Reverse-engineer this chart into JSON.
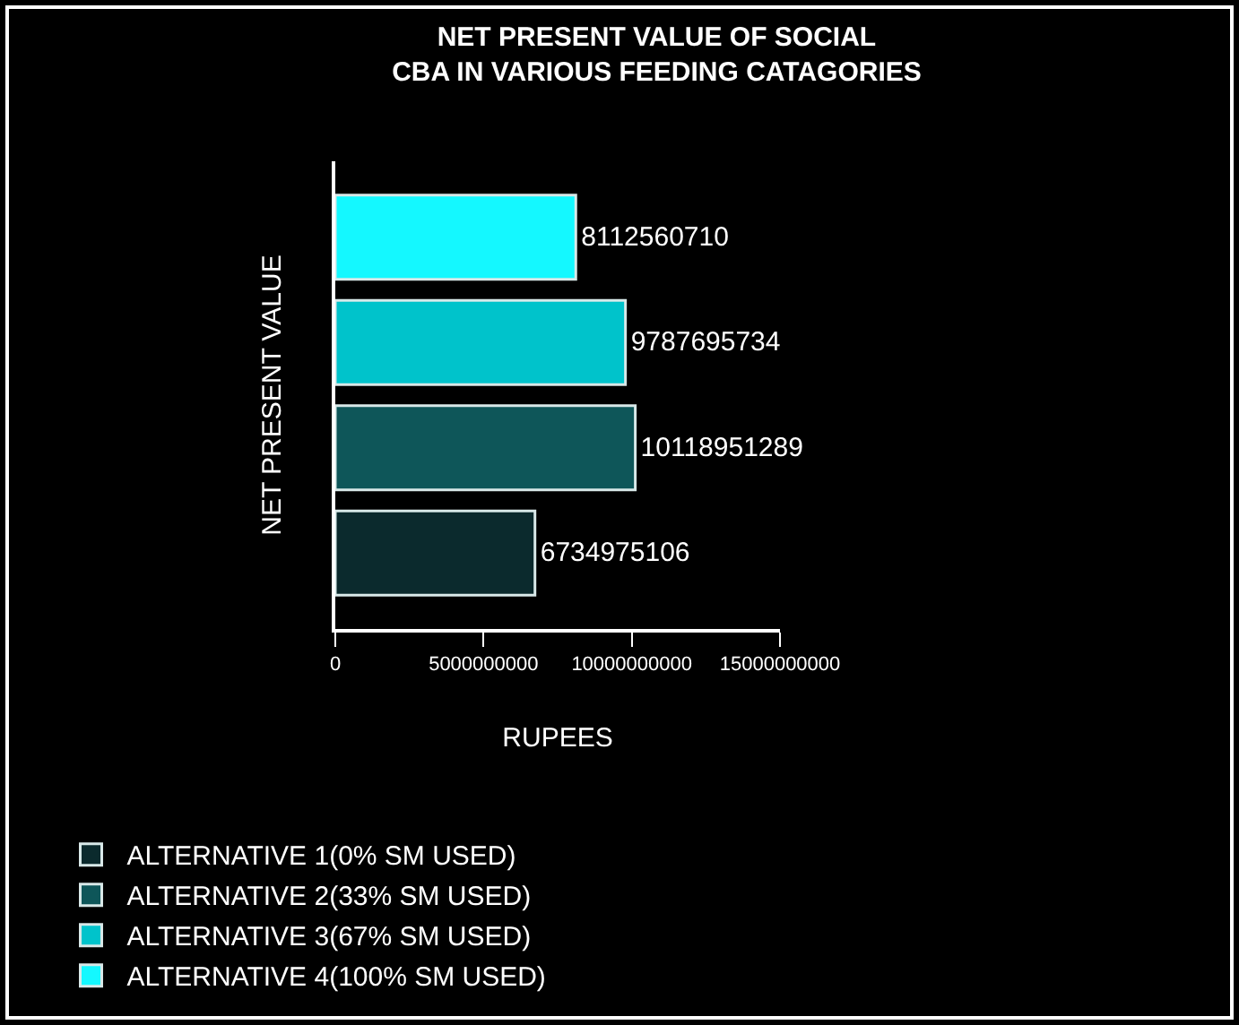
{
  "chart_data": {
    "type": "bar",
    "orientation": "horizontal",
    "title": "NET PRESENT VALUE OF SOCIAL\nCBA IN VARIOUS FEEDING CATAGORIES",
    "xlabel": "RUPEES",
    "ylabel": "NET PRESENT VALUE",
    "categories": [
      null
    ],
    "series": [
      {
        "name": "ALTERNATIVE 1(0% SM USED)",
        "color": "#0b2a2d",
        "values": [
          6734975106
        ]
      },
      {
        "name": "ALTERNATIVE 2(33% SM USED)",
        "color": "#0e5659",
        "values": [
          10118951289
        ]
      },
      {
        "name": "ALTERNATIVE 3(67% SM USED)",
        "color": "#00c3cb",
        "values": [
          9787695734
        ]
      },
      {
        "name": "ALTERNATIVE 4(100% SM USED)",
        "color": "#14f8ff",
        "values": [
          8112560710
        ]
      }
    ],
    "xlim": [
      0,
      15000000000
    ],
    "xticks": [
      0,
      5000000000,
      10000000000,
      15000000000
    ],
    "data_labels": true,
    "grid": false,
    "legend": "bottom"
  }
}
